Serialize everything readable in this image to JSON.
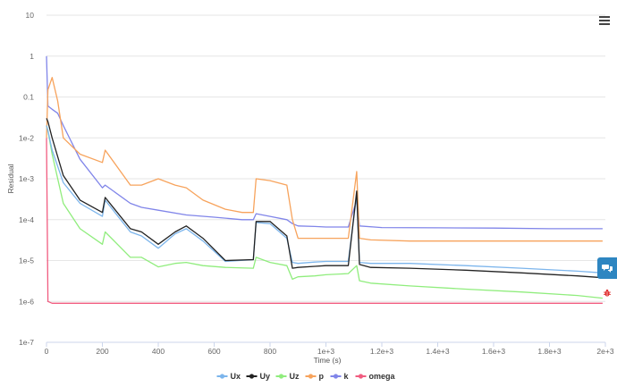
{
  "menu": {
    "icon": "hamburger-menu-icon"
  },
  "side_widgets": {
    "chat_icon": "chat-bubbles-icon",
    "bug_icon": "bug-icon"
  },
  "credit_text": "",
  "colors": {
    "Ux": "#7cb5ec",
    "Uy": "#222222",
    "Uz": "#90ed7d",
    "p": "#f7a35c",
    "k": "#8085e9",
    "omega": "#f15c80",
    "grid": "#e6e6e6",
    "axis": "#ccd6eb"
  },
  "chart_data": {
    "type": "line",
    "xlabel": "Time (s)",
    "ylabel": "Residual",
    "xlim": [
      0,
      2000
    ],
    "ylim": [
      1e-07,
      10
    ],
    "y_scale": "log",
    "grid": true,
    "legend_position": "bottom-center",
    "x_ticks": [
      "0",
      "200",
      "400",
      "600",
      "800",
      "1e+3",
      "1.2e+3",
      "1.4e+3",
      "1.6e+3",
      "1.8e+3",
      "2e+3"
    ],
    "y_ticks": [
      "10",
      "1",
      "0.1",
      "1e-2",
      "1e-3",
      "1e-4",
      "1e-5",
      "1e-6",
      "1e-7"
    ],
    "series": [
      {
        "name": "Ux",
        "x": [
          0,
          5,
          20,
          60,
          120,
          200,
          210,
          300,
          340,
          400,
          460,
          500,
          560,
          640,
          740,
          750,
          800,
          860,
          880,
          900,
          960,
          1000,
          1080,
          1110,
          1120,
          1160,
          1300,
          1500,
          1700,
          1900,
          1990
        ],
        "y": [
          0.02,
          0.015,
          0.005,
          0.0008,
          0.00025,
          0.00012,
          0.0003,
          5e-05,
          4e-05,
          2e-05,
          4.5e-05,
          6e-05,
          3e-05,
          9.5e-06,
          1.05e-05,
          8.5e-05,
          8e-05,
          3.5e-05,
          9e-06,
          8.5e-06,
          9.2e-06,
          9.5e-06,
          9.5e-06,
          0.0004,
          9e-06,
          8.5e-06,
          8.5e-06,
          7.5e-06,
          6.5e-06,
          5.5e-06,
          5e-06
        ]
      },
      {
        "name": "Uy",
        "x": [
          0,
          5,
          20,
          60,
          120,
          200,
          210,
          300,
          340,
          400,
          460,
          500,
          560,
          640,
          740,
          750,
          800,
          860,
          880,
          900,
          960,
          1000,
          1080,
          1110,
          1120,
          1160,
          1300,
          1500,
          1700,
          1900,
          1990
        ],
        "y": [
          0.03,
          0.025,
          0.01,
          0.0012,
          0.0003,
          0.00015,
          0.00035,
          6e-05,
          5e-05,
          2.5e-05,
          5e-05,
          7e-05,
          3.5e-05,
          1e-05,
          1.05e-05,
          9e-05,
          9e-05,
          4e-05,
          6.5e-06,
          6.8e-06,
          7.2e-06,
          7.5e-06,
          7.5e-06,
          0.0005,
          8e-06,
          6.8e-06,
          6.5e-06,
          5.8e-06,
          5e-06,
          4.2e-06,
          3.8e-06
        ]
      },
      {
        "name": "Uz",
        "x": [
          0,
          5,
          20,
          60,
          120,
          200,
          210,
          300,
          340,
          400,
          460,
          500,
          560,
          640,
          740,
          750,
          800,
          860,
          880,
          900,
          960,
          1000,
          1080,
          1110,
          1120,
          1160,
          1300,
          1500,
          1700,
          1900,
          1990
        ],
        "y": [
          0.02,
          0.015,
          0.004,
          0.00025,
          6e-05,
          2.5e-05,
          5e-05,
          1.2e-05,
          1.2e-05,
          7e-06,
          8.5e-06,
          9e-06,
          7.5e-06,
          6.8e-06,
          6.5e-06,
          1.2e-05,
          9e-06,
          7.5e-06,
          3.5e-06,
          4e-06,
          4.2e-06,
          4.5e-06,
          4.8e-06,
          7.5e-06,
          3.2e-06,
          2.8e-06,
          2.4e-06,
          2e-06,
          1.7e-06,
          1.4e-06,
          1.2e-06
        ]
      },
      {
        "name": "p",
        "x": [
          0,
          5,
          20,
          40,
          60,
          120,
          200,
          210,
          300,
          340,
          400,
          460,
          500,
          560,
          640,
          700,
          740,
          750,
          800,
          860,
          880,
          900,
          960,
          1000,
          1080,
          1110,
          1120,
          1160,
          1300,
          1500,
          1700,
          1900,
          1990
        ],
        "y": [
          0.01,
          0.15,
          0.3,
          0.08,
          0.01,
          0.004,
          0.0025,
          0.005,
          0.0007,
          0.0007,
          0.001,
          0.0007,
          0.0006,
          0.0003,
          0.00018,
          0.00015,
          0.00015,
          0.001,
          0.0009,
          0.0007,
          0.0001,
          3.5e-05,
          3.5e-05,
          3.5e-05,
          3.5e-05,
          0.0015,
          3.5e-05,
          3.2e-05,
          3e-05,
          3e-05,
          3e-05,
          3e-05,
          3e-05
        ]
      },
      {
        "name": "k",
        "x": [
          0,
          5,
          20,
          40,
          60,
          120,
          200,
          210,
          300,
          340,
          400,
          500,
          600,
          700,
          740,
          750,
          800,
          860,
          880,
          900,
          960,
          1000,
          1080,
          1110,
          1120,
          1200,
          1400,
          1600,
          1800,
          1990
        ],
        "y": [
          1,
          0.06,
          0.05,
          0.04,
          0.02,
          0.003,
          0.0006,
          0.0007,
          0.00025,
          0.0002,
          0.00017,
          0.00013,
          0.000115,
          0.0001,
          0.0001,
          0.00014,
          0.00012,
          0.0001,
          8e-05,
          7e-05,
          6.8e-05,
          6.6e-05,
          6.6e-05,
          0.0003,
          7e-05,
          6.4e-05,
          6.3e-05,
          6.2e-05,
          6e-05,
          6e-05
        ]
      },
      {
        "name": "omega",
        "x": [
          0,
          5,
          20,
          100,
          400,
          800,
          1200,
          1600,
          1990
        ],
        "y": [
          0.01,
          1e-06,
          9e-07,
          9e-07,
          9e-07,
          9e-07,
          9e-07,
          9e-07,
          9e-07
        ]
      }
    ]
  }
}
